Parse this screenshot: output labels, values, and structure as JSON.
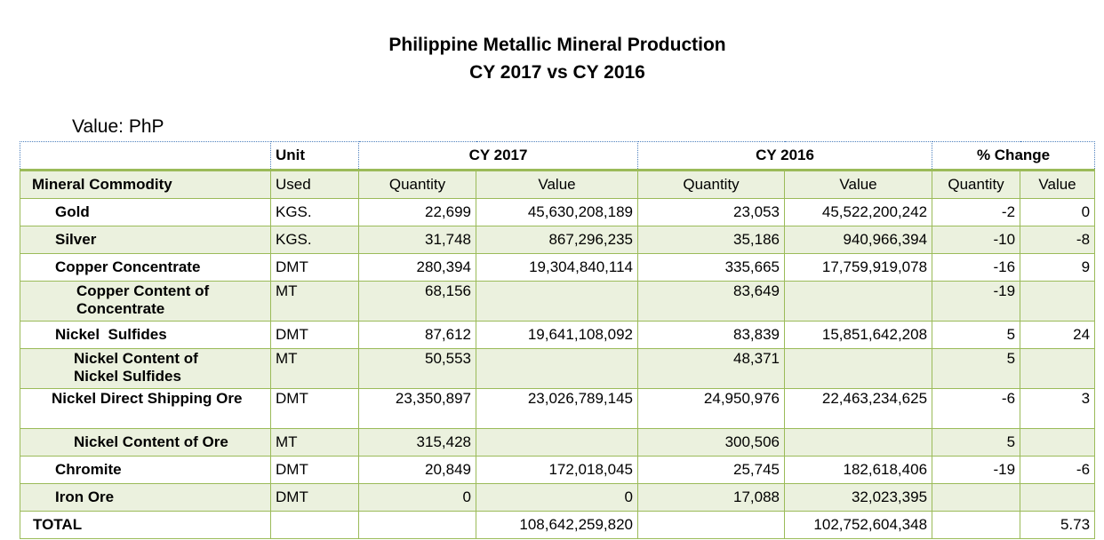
{
  "title_line1": "Philippine Metallic Mineral Production",
  "title_line2": "CY 2017 vs CY 2016",
  "value_note": "Value: PhP",
  "header_row1": {
    "unit": "Unit",
    "cy2017": "CY 2017",
    "cy2016": "CY 2016",
    "pct_change": "% Change"
  },
  "header_row2": {
    "commodity": "Mineral Commodity",
    "unit": "Used",
    "qty_2017": "Quantity",
    "val_2017": "Value",
    "qty_2016": "Quantity",
    "val_2016": "Value",
    "pct_qty": "Quantity",
    "pct_val": "Value"
  },
  "rows": [
    {
      "commodity": "Gold",
      "unit": "KGS.",
      "qty_2017": "22,699",
      "val_2017": "45,630,208,189",
      "qty_2016": "23,053",
      "val_2016": "45,522,200,242",
      "pct_qty": "-2",
      "pct_val": "0"
    },
    {
      "commodity": "Silver",
      "unit": "KGS.",
      "qty_2017": "31,748",
      "val_2017": "867,296,235",
      "qty_2016": "35,186",
      "val_2016": "940,966,394",
      "pct_qty": "-10",
      "pct_val": "-8"
    },
    {
      "commodity": "Copper Concentrate",
      "unit": "DMT",
      "qty_2017": "280,394",
      "val_2017": "19,304,840,114",
      "qty_2016": "335,665",
      "val_2016": "17,759,919,078",
      "pct_qty": "-16",
      "pct_val": "9"
    },
    {
      "commodity": "Copper Content of Concentrate",
      "unit": "MT",
      "qty_2017": "68,156",
      "val_2017": "",
      "qty_2016": "83,649",
      "val_2016": "",
      "pct_qty": "-19",
      "pct_val": ""
    },
    {
      "commodity": "Nickel  Sulfides",
      "unit": "DMT",
      "qty_2017": "87,612",
      "val_2017": "19,641,108,092",
      "qty_2016": "83,839",
      "val_2016": "15,851,642,208",
      "pct_qty": "5",
      "pct_val": "24"
    },
    {
      "commodity": "Nickel Content of Nickel Sulfides",
      "unit": "MT",
      "qty_2017": "50,553",
      "val_2017": "",
      "qty_2016": "48,371",
      "val_2016": "",
      "pct_qty": "5",
      "pct_val": ""
    },
    {
      "commodity": "Nickel  Direct Shipping Ore",
      "unit": "DMT",
      "qty_2017": "23,350,897",
      "val_2017": "23,026,789,145",
      "qty_2016": "24,950,976",
      "val_2016": "22,463,234,625",
      "pct_qty": "-6",
      "pct_val": "3"
    },
    {
      "commodity": "Nickel Content of Ore",
      "unit": "MT",
      "qty_2017": "315,428",
      "val_2017": "",
      "qty_2016": "300,506",
      "val_2016": "",
      "pct_qty": "5",
      "pct_val": ""
    },
    {
      "commodity": "Chromite",
      "unit": "DMT",
      "qty_2017": "20,849",
      "val_2017": "172,018,045",
      "qty_2016": "25,745",
      "val_2016": "182,618,406",
      "pct_qty": "-19",
      "pct_val": "-6"
    },
    {
      "commodity": "Iron Ore",
      "unit": "DMT",
      "qty_2017": "0",
      "val_2017": "0",
      "qty_2016": "17,088",
      "val_2016": "32,023,395",
      "pct_qty": "",
      "pct_val": ""
    }
  ],
  "total": {
    "label": "TOTAL",
    "val_2017": "108,642,259,820",
    "val_2016": "102,752,604,348",
    "pct_val": "5.73"
  }
}
